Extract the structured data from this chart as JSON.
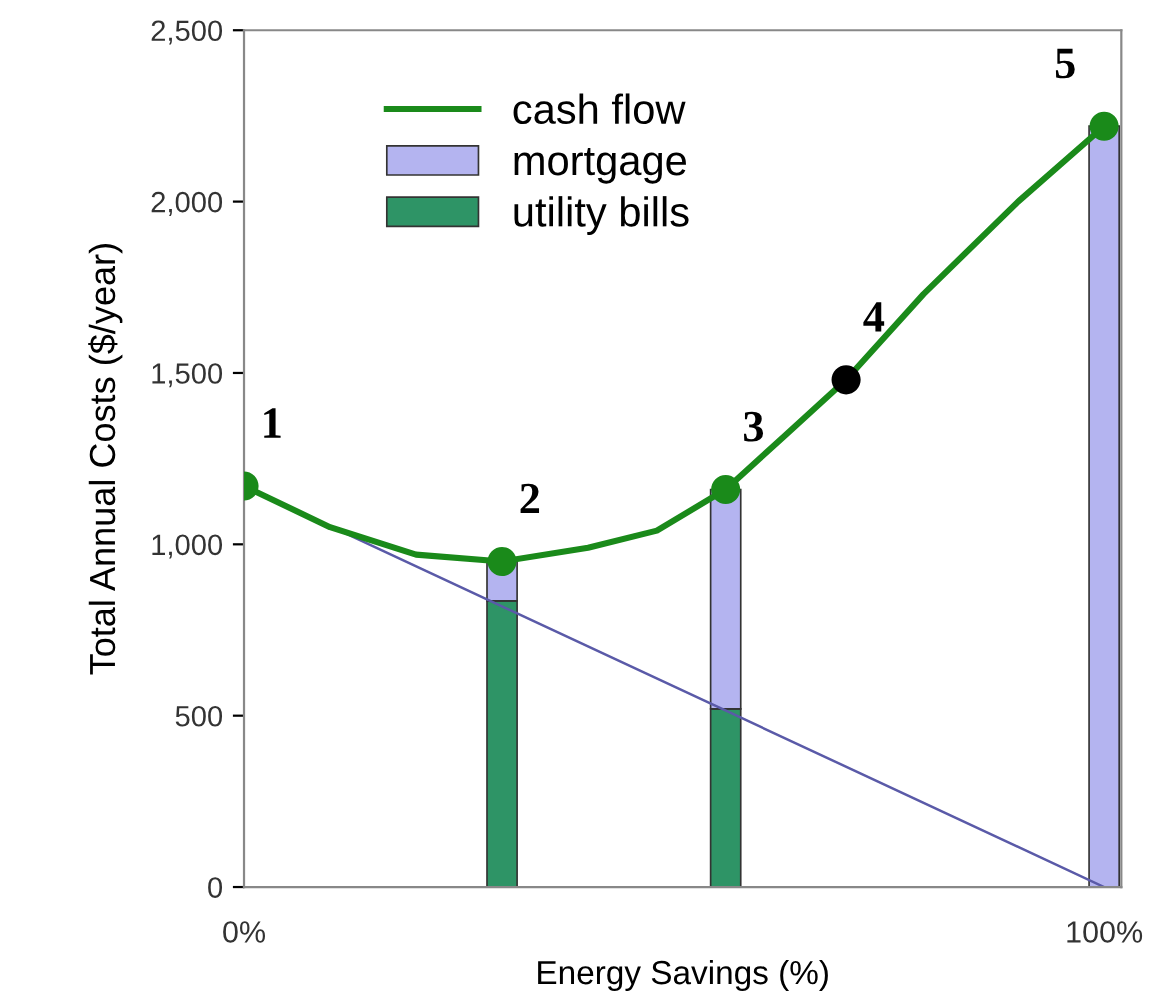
{
  "chart_data": {
    "type": "bar",
    "stacked": true,
    "xlabel": "Energy Savings (%)",
    "ylabel": "Total Annual Costs ($/year)",
    "xlim": [
      0,
      102
    ],
    "xticks": [
      {
        "value": 0,
        "label": "0%"
      },
      {
        "value": 100,
        "label": "100%"
      }
    ],
    "ylim": [
      0,
      2500
    ],
    "yticks": [
      0,
      500,
      {
        "value": 1000,
        "label": "1,000"
      },
      {
        "value": 1500,
        "label": "1,500"
      },
      {
        "value": 2000,
        "label": "2,000"
      },
      {
        "value": 2500,
        "label": "2,500"
      }
    ],
    "legend": "top left",
    "series": [
      {
        "name": "utility bills",
        "color": "#2e9466",
        "x": [
          30,
          56,
          100
        ],
        "values": [
          835,
          520,
          0
        ]
      },
      {
        "name": "mortgage",
        "color": "#b4b4f0",
        "x": [
          30,
          56,
          100
        ],
        "values": [
          115,
          640,
          2220
        ]
      },
      {
        "name": "cash flow",
        "type": "line",
        "color": "#1a8a1a",
        "x": [
          0,
          10,
          20,
          30,
          40,
          48,
          56,
          63,
          70,
          79,
          90,
          100
        ],
        "values": [
          1170,
          1050,
          970,
          950,
          990,
          1040,
          1160,
          1320,
          1480,
          1730,
          2000,
          2220
        ]
      },
      {
        "type": "line",
        "color": "#5a5aa8",
        "x": [
          0,
          100
        ],
        "values": [
          1170,
          0
        ]
      },
      {
        "type": "scatter",
        "marker": "circle",
        "x": [
          0,
          30,
          56,
          70,
          100
        ],
        "values": [
          1170,
          950,
          1160,
          1480,
          2220
        ],
        "colors": [
          "#1a8a1a",
          "#1a8a1a",
          "#1a8a1a",
          "#000000",
          "#1a8a1a"
        ]
      }
    ],
    "annotations": [
      {
        "text": "1",
        "x": 0,
        "y": 1170
      },
      {
        "text": "2",
        "x": 30,
        "y": 950
      },
      {
        "text": "3",
        "x": 56,
        "y": 1160
      },
      {
        "text": "4",
        "x": 70,
        "y": 1480
      },
      {
        "text": "5",
        "x": 100,
        "y": 2220
      }
    ]
  }
}
